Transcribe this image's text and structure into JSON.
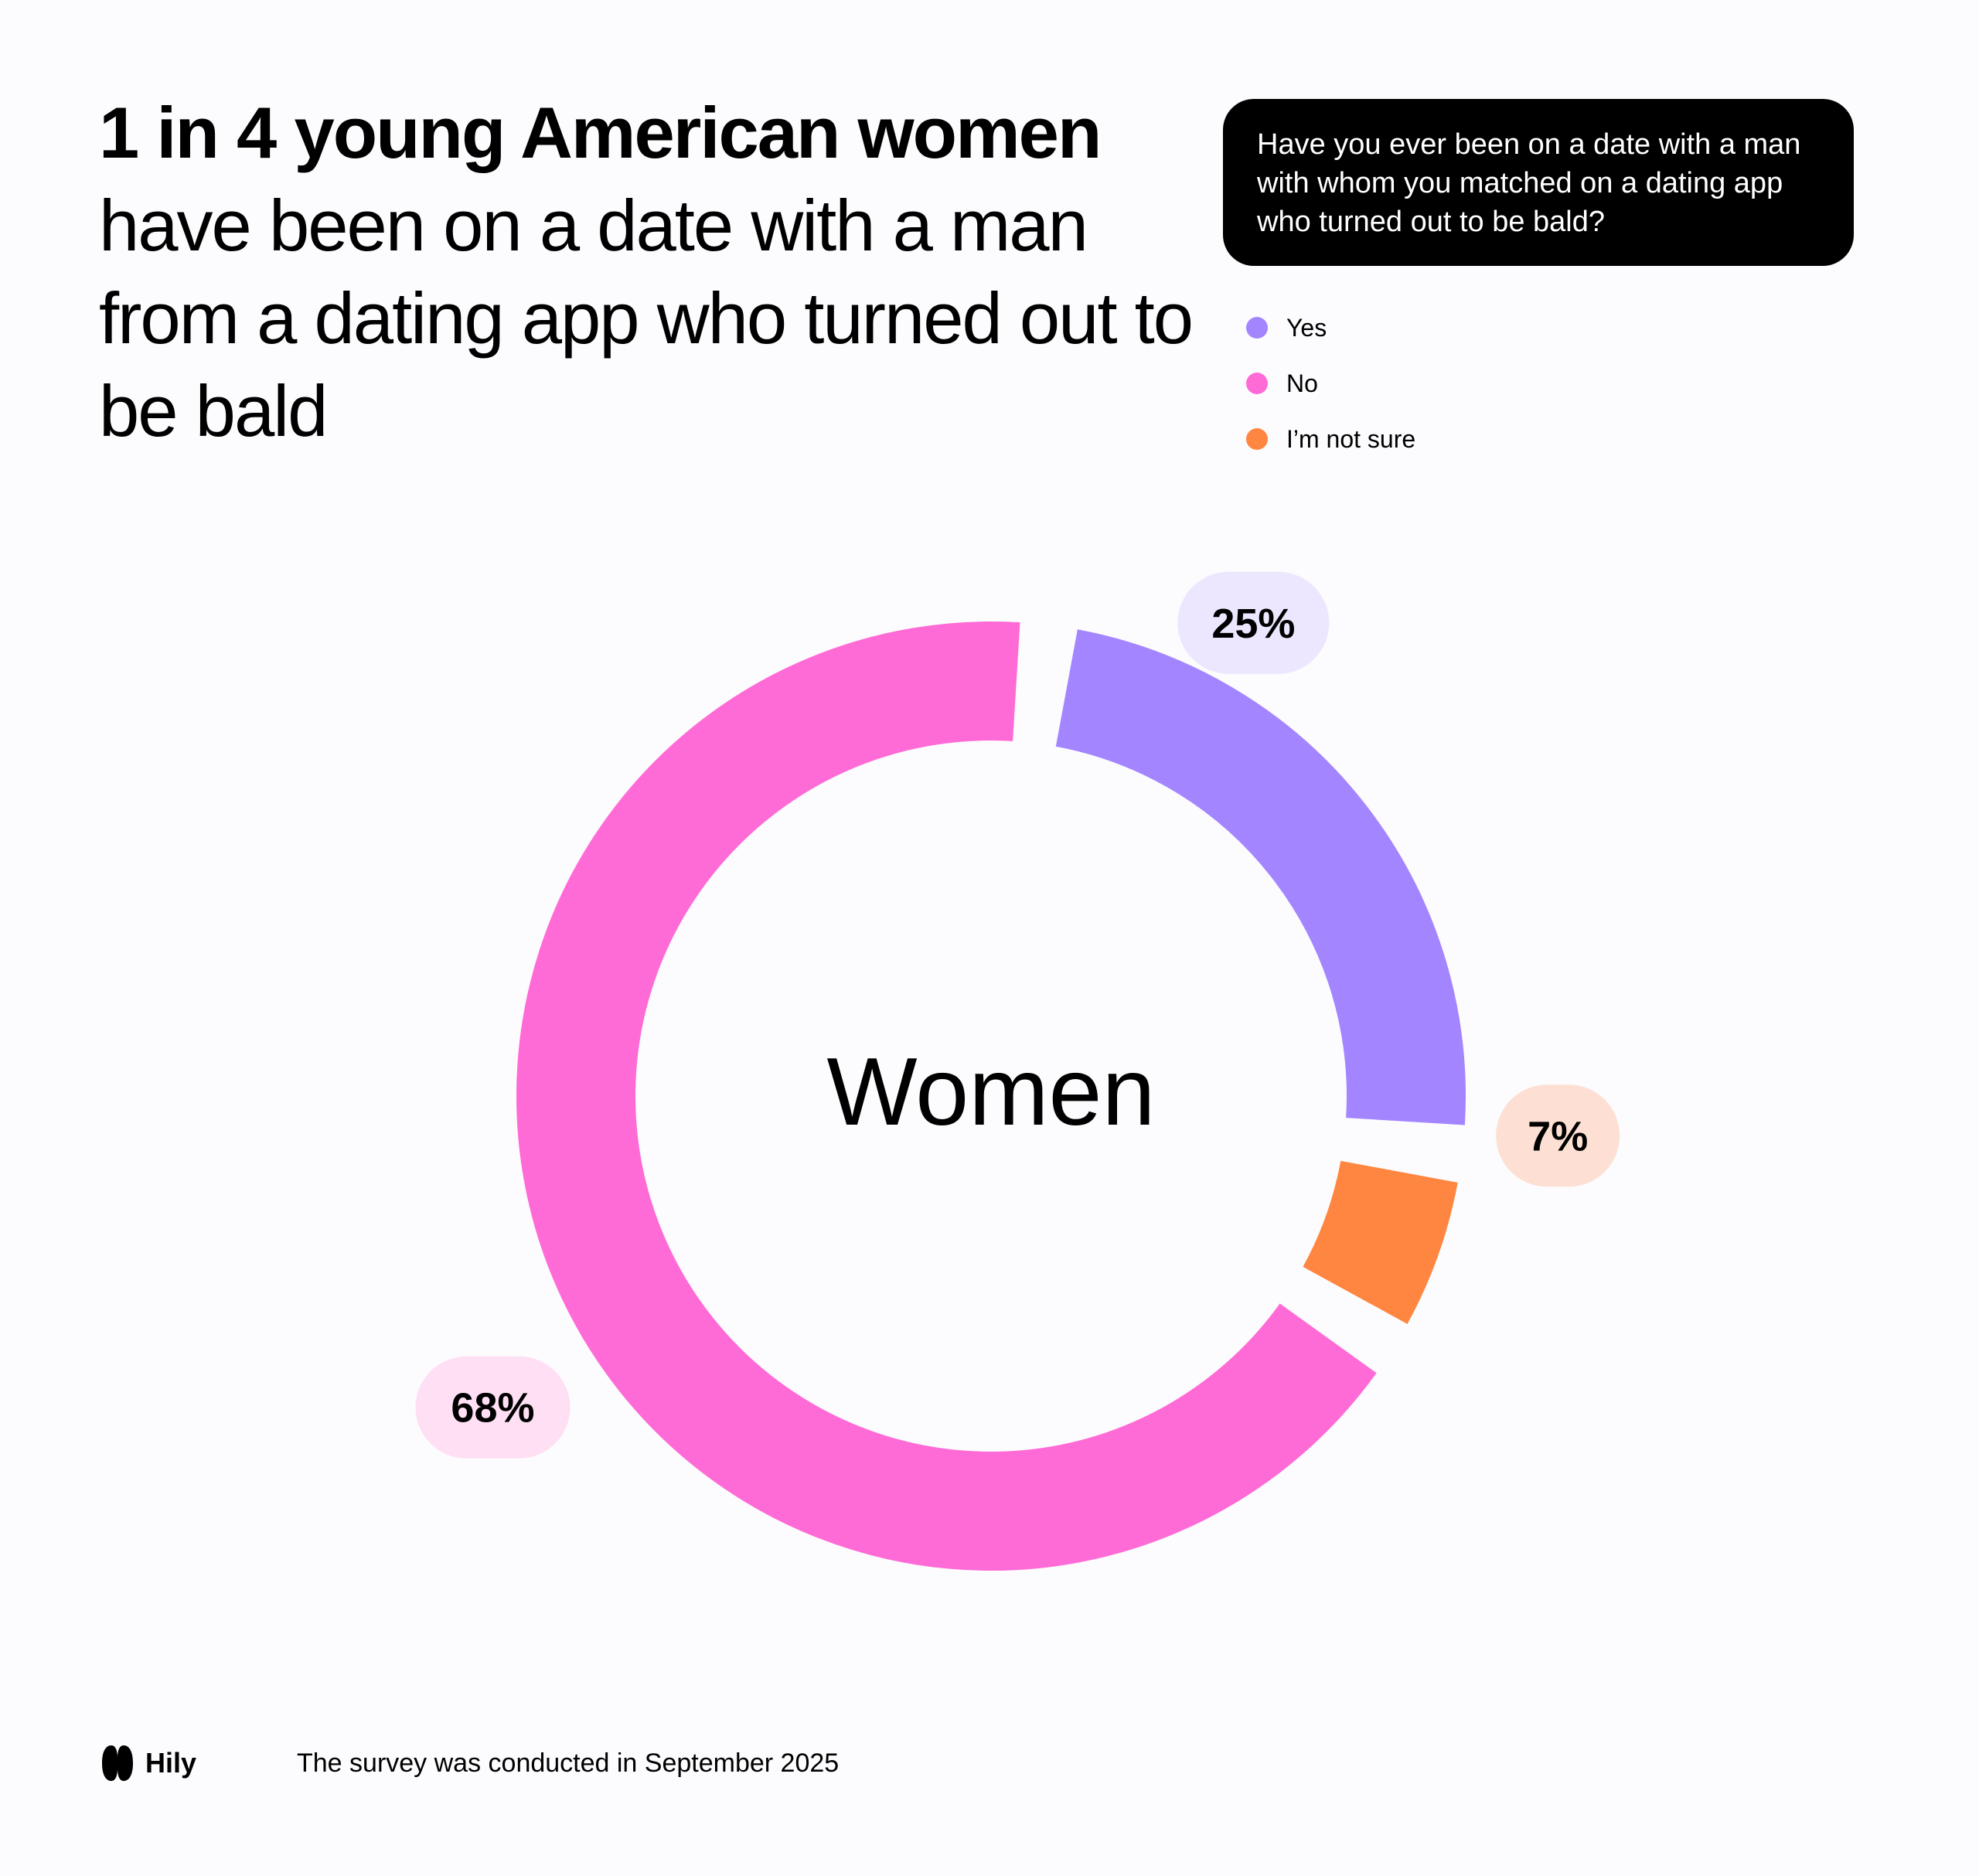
{
  "headline": {
    "bold": "1 in 4 young American women",
    "rest": "have been on a date with a man from a dating app who turned out to be bald"
  },
  "question": "Have you ever been on a date with a man with whom you matched on a dating app who turned out to be bald?",
  "legend": [
    {
      "label": "Yes",
      "color": "#a385ff"
    },
    {
      "label": "No",
      "color": "#ff6bd6"
    },
    {
      "label": "I’m not sure",
      "color": "#ff8640"
    }
  ],
  "chart_data": {
    "type": "pie",
    "center_label": "Women",
    "categories": [
      "Yes",
      "No",
      "I’m not sure"
    ],
    "values": [
      25,
      68,
      7
    ],
    "labels": [
      "25%",
      "68%",
      "7%"
    ],
    "colors": [
      "#a385ff",
      "#ff6bd6",
      "#ff8640"
    ],
    "label_backgrounds": [
      "#ece6fe",
      "#ffdff4",
      "#fde0d3"
    ],
    "legend_position": "top-right"
  },
  "footer": {
    "brand": "Hily",
    "note": "The survey was conducted in September 2025"
  }
}
